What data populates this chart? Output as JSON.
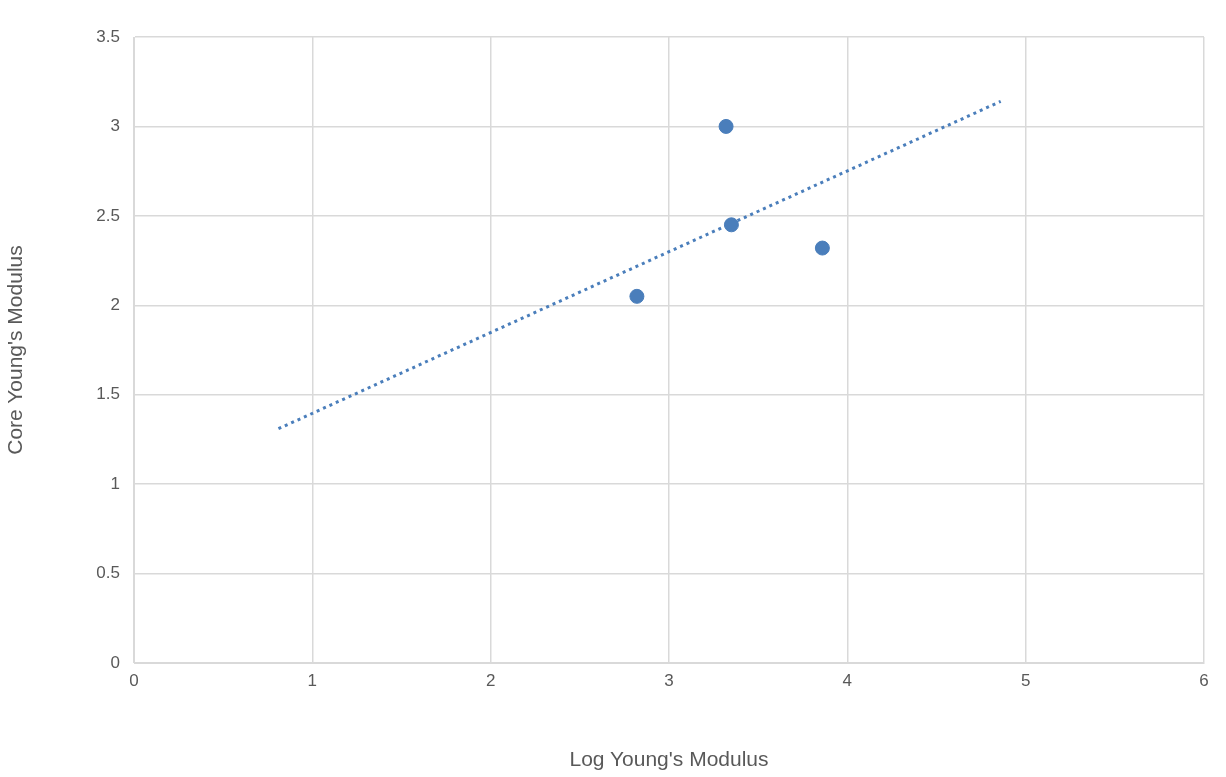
{
  "chart_data": {
    "type": "scatter",
    "xlabel": "Log Young's Modulus",
    "ylabel": "Core Young's Modulus",
    "xlim": [
      0,
      6
    ],
    "xticks": [
      0,
      1,
      2,
      3,
      4,
      5,
      6
    ],
    "ylim": [
      0,
      3.5
    ],
    "yticks": [
      0,
      0.5,
      1,
      1.5,
      2,
      2.5,
      3,
      3.5
    ],
    "grid": true,
    "legend": false,
    "marker": "circle",
    "series": [
      {
        "type": "scatter",
        "color": "#4a7ebb",
        "x": [
          2.82,
          3.32,
          3.35,
          3.86
        ],
        "values": [
          2.05,
          3.0,
          2.45,
          2.32
        ]
      },
      {
        "type": "line",
        "color": "#4a7ebb",
        "line_style": "dotted",
        "marker": "none",
        "x": [
          0.81,
          4.86
        ],
        "values": [
          1.31,
          3.14
        ]
      }
    ]
  }
}
